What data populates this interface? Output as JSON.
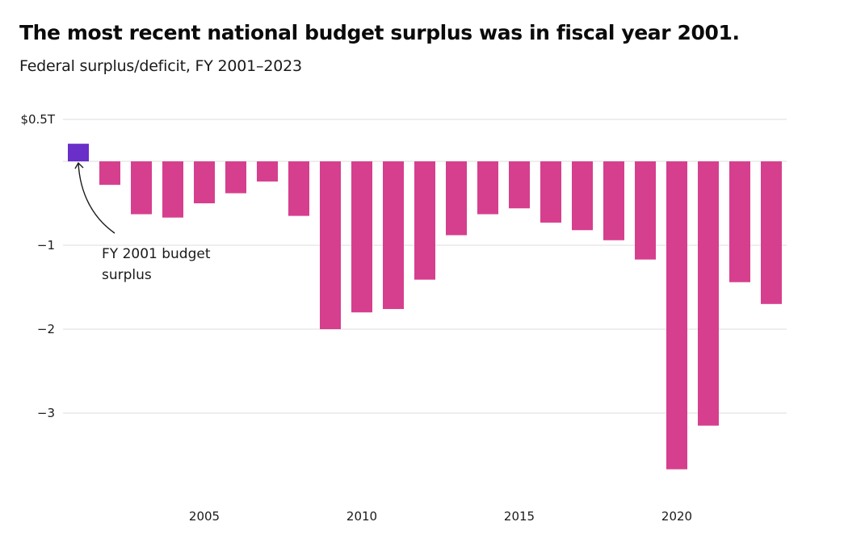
{
  "header": {
    "title": "The most recent national budget surplus was in fiscal year 2001.",
    "subtitle": "Federal surplus/deficit, FY 2001–2023"
  },
  "colors": {
    "surplus": "#6a2ec9",
    "deficit": "#d63f8e",
    "grid": "#dcdcdc",
    "text": "#1a1a1a"
  },
  "chart_data": {
    "type": "bar",
    "title": "The most recent national budget surplus was in fiscal year 2001.",
    "subtitle": "Federal surplus/deficit, FY 2001–2023",
    "xlabel": "",
    "ylabel": "",
    "units": "trillions of dollars",
    "categories": [
      2001,
      2002,
      2003,
      2004,
      2005,
      2006,
      2007,
      2008,
      2009,
      2010,
      2011,
      2012,
      2013,
      2014,
      2015,
      2016,
      2017,
      2018,
      2019,
      2020,
      2021,
      2022,
      2023
    ],
    "values": [
      0.21,
      -0.28,
      -0.63,
      -0.67,
      -0.5,
      -0.38,
      -0.24,
      -0.65,
      -2.0,
      -1.8,
      -1.76,
      -1.41,
      -0.88,
      -0.63,
      -0.56,
      -0.73,
      -0.82,
      -0.94,
      -1.17,
      -3.67,
      -3.15,
      -1.44,
      -1.7
    ],
    "ylim": [
      -3.9,
      0.5
    ],
    "yticks": [
      {
        "value": 0.5,
        "label": "$0.5T"
      },
      {
        "value": 0,
        "label": ""
      },
      {
        "value": -1,
        "label": "−1"
      },
      {
        "value": -2,
        "label": "−2"
      },
      {
        "value": -3,
        "label": "−3"
      }
    ],
    "xticks": [
      {
        "value": 2005,
        "label": "2005"
      },
      {
        "value": 2010,
        "label": "2010"
      },
      {
        "value": 2015,
        "label": "2015"
      },
      {
        "value": 2020,
        "label": "2020"
      }
    ],
    "grid": true,
    "legend": "none",
    "highlight": {
      "category": 2001,
      "color_key": "surplus"
    },
    "annotations": [
      {
        "target": 2001,
        "lines": [
          "FY 2001 budget",
          "surplus"
        ],
        "style": "curved-arrow"
      }
    ]
  }
}
